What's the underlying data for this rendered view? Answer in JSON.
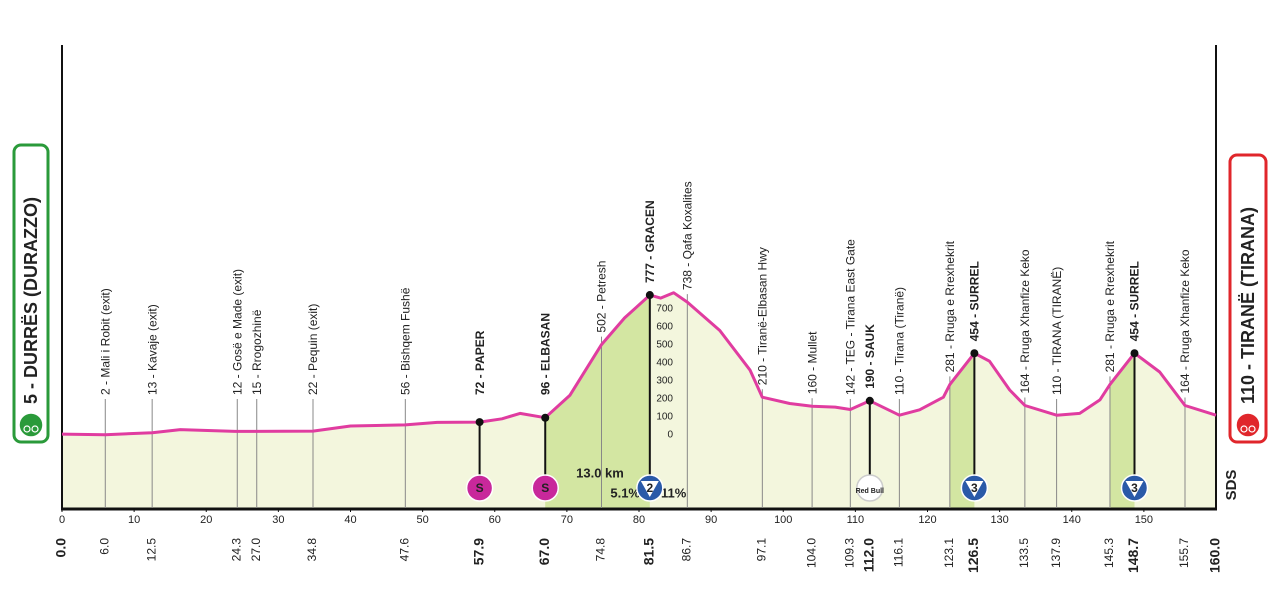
{
  "chart_data": {
    "type": "line",
    "start": {
      "name": "5 - DURRËS (DURAZZO)",
      "km": {
        "value": 0,
        "label": "0.0"
      },
      "color": "#2a9a3a"
    },
    "finish": {
      "name": "110 - TIRANË (TIRANA)",
      "km": {
        "value": 160,
        "label": "160.0"
      },
      "color": "#e0262b"
    },
    "x": [
      0,
      6,
      12.5,
      16.4,
      24,
      34.8,
      40,
      47.6,
      52,
      57.9,
      61,
      63.5,
      67,
      70.4,
      74.8,
      78,
      81.5,
      83,
      84.8,
      86.7,
      91.2,
      95.4,
      97.1,
      100.9,
      104,
      107.2,
      109.3,
      112,
      116.1,
      118.9,
      122.2,
      123.1,
      126.5,
      128.6,
      131.4,
      133.5,
      137.9,
      141.1,
      143.9,
      145.3,
      148.7,
      152.2,
      155.7,
      160
    ],
    "values": [
      5,
      2,
      13,
      30,
      20,
      22,
      50,
      56,
      70,
      72,
      90,
      120,
      96,
      220,
      502,
      650,
      777,
      760,
      790,
      738,
      580,
      360,
      210,
      175,
      160,
      155,
      142,
      190,
      110,
      140,
      210,
      281,
      454,
      410,
      250,
      164,
      110,
      120,
      195,
      281,
      454,
      350,
      164,
      110
    ],
    "color": "#e03ca0",
    "fill_color": "#f3f6dd",
    "climb_color": "#d3e6a2",
    "climb_zones": [
      [
        67,
        81.5
      ],
      [
        123.1,
        126.5
      ],
      [
        145.3,
        148.7
      ]
    ],
    "xlim": [
      0,
      160
    ],
    "ylim": [
      -405,
      2165
    ],
    "xticks": [
      0,
      10,
      20,
      30,
      40,
      50,
      60,
      70,
      80,
      90,
      100,
      110,
      120,
      130,
      140,
      150
    ],
    "yticks": [
      0,
      100,
      200,
      300,
      400,
      500,
      600,
      700
    ],
    "waypoints": [
      {
        "km": {
          "value": 6,
          "label": "6.0"
        },
        "name": "2 - Mali i Robit (exit)"
      },
      {
        "km": {
          "value": 12.5,
          "label": "12.5"
        },
        "name": "13 - Kavaje (exit)"
      },
      {
        "km": {
          "value": 24.3,
          "label": "24.3"
        },
        "name": "12 - Gosë e Made (exit)"
      },
      {
        "km": {
          "value": 27,
          "label": "27.0"
        },
        "name": "15 - Rrogozhinë"
      },
      {
        "km": {
          "value": 34.8,
          "label": "34.8"
        },
        "name": "22 - Pequin (exit)"
      },
      {
        "km": {
          "value": 47.6,
          "label": "47.6"
        },
        "name": "56 - Bishqem Fushë"
      },
      {
        "km": {
          "value": 57.9,
          "label": "57.9"
        },
        "name": "72 - PAPER",
        "badge": {
          "text": "S",
          "color": "#c8289b",
          "text_color": "#ffffff"
        }
      },
      {
        "km": {
          "value": 67,
          "label": "67.0"
        },
        "name": "96 - ELBASAN",
        "badge": {
          "text": "S",
          "color": "#c8289b",
          "text_color": "#ffffff"
        }
      },
      {
        "km": {
          "value": 74.8,
          "label": "74.8"
        },
        "name": "502 - Petresh"
      },
      {
        "km": {
          "value": 81.5,
          "label": "81.5"
        },
        "name": "777 - GRACEN",
        "badge": {
          "text": "2",
          "color": "#2a5aa8",
          "text_color": "#1a2a55"
        }
      },
      {
        "km": {
          "value": 86.7,
          "label": "86.7"
        },
        "name": "738 - Qafa Koxalites"
      },
      {
        "km": {
          "value": 97.1,
          "label": "97.1"
        },
        "name": "210 - Tiranë-Elbasan Hwy"
      },
      {
        "km": {
          "value": 104,
          "label": "104.0"
        },
        "name": "160 - Mullet"
      },
      {
        "km": {
          "value": 109.3,
          "label": "109.3"
        },
        "name": "142 - TEG - Tirana East Gate"
      },
      {
        "km": {
          "value": 112,
          "label": "112.0"
        },
        "name": "190 - SAUK",
        "badge": {
          "text": "Red Bull",
          "color": "#ffffff",
          "text_color": "#d0102a"
        }
      },
      {
        "km": {
          "value": 116.1,
          "label": "116.1"
        },
        "name": "110 - Tirana (Tiranë)"
      },
      {
        "km": {
          "value": 123.1,
          "label": "123.1"
        },
        "name": "281 - Rruga e Rrexhekrit"
      },
      {
        "km": {
          "value": 126.5,
          "label": "126.5"
        },
        "name": "454 - SURREL",
        "badge": {
          "text": "3",
          "color": "#2a5aa8",
          "text_color": "#1a2a55"
        }
      },
      {
        "km": {
          "value": 133.5,
          "label": "133.5"
        },
        "name": "164 - Rruga Xhanfize Keko"
      },
      {
        "km": {
          "value": 137.9,
          "label": "137.9"
        },
        "name": "110 - TIRANA (TIRANË)"
      },
      {
        "km": {
          "value": 145.3,
          "label": "145.3"
        },
        "name": "281 - Rruga e Rrexhekrit"
      },
      {
        "km": {
          "value": 148.7,
          "label": "148.7"
        },
        "name": "454 - SURREL",
        "badge": {
          "text": "3",
          "color": "#2a5aa8",
          "text_color": "#1a2a55"
        }
      },
      {
        "km": {
          "value": 155.7,
          "label": "155.7"
        },
        "name": "164 - Rruga Xhanfize Keko"
      }
    ],
    "climb_note": {
      "length": "13.0 km",
      "gradient_avg": "5.1%",
      "gradient_max": "11%"
    },
    "logo": "SDS"
  }
}
